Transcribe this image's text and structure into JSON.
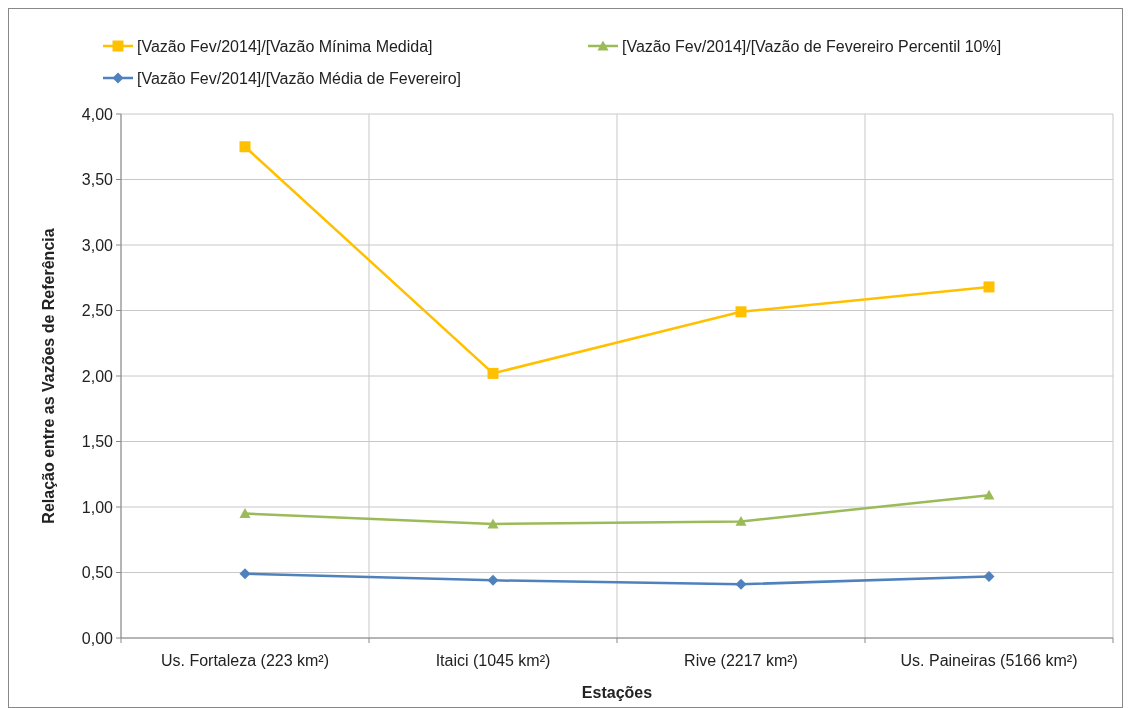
{
  "chart_data": {
    "type": "line",
    "xlabel": "Estações",
    "ylabel": "Relação entre as Vazões de Referência",
    "categories": [
      "Us. Fortaleza (223 km²)",
      "Itaici (1045 km²)",
      "Rive (2217 km²)",
      "Us. Paineiras (5166 km²)"
    ],
    "series": [
      {
        "name": "[Vazão Fev/2014]/[Vazão Mínima Medida]",
        "color": "#ffc000",
        "marker": "square",
        "values": [
          3.75,
          2.02,
          2.49,
          2.68
        ]
      },
      {
        "name": "[Vazão Fev/2014]/[Vazão de Fevereiro Percentil 10%]",
        "color": "#9bbb59",
        "marker": "triangle",
        "values": [
          0.95,
          0.87,
          0.89,
          1.09
        ]
      },
      {
        "name": "[Vazão Fev/2014]/[Vazão Média de Fevereiro]",
        "color": "#4f81bd",
        "marker": "diamond",
        "values": [
          0.49,
          0.44,
          0.41,
          0.47
        ]
      }
    ],
    "ylim": [
      0,
      4
    ],
    "yticks": [
      {
        "value": 0,
        "label": "0,00"
      },
      {
        "value": 0.5,
        "label": "0,50"
      },
      {
        "value": 1,
        "label": "1,00"
      },
      {
        "value": 1.5,
        "label": "1,50"
      },
      {
        "value": 2,
        "label": "2,00"
      },
      {
        "value": 2.5,
        "label": "2,50"
      },
      {
        "value": 3,
        "label": "3,00"
      },
      {
        "value": 3.5,
        "label": "3,50"
      },
      {
        "value": 4,
        "label": "4,00"
      }
    ],
    "grid": true,
    "legend": "top",
    "line_style": "solid"
  }
}
